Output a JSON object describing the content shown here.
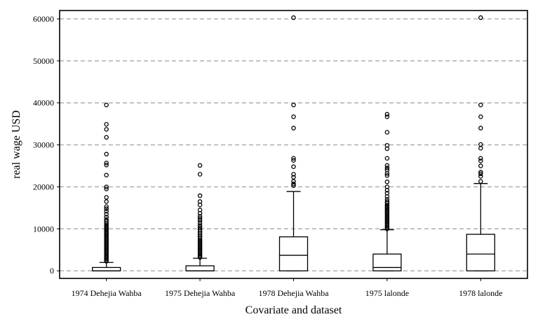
{
  "chart_data": {
    "type": "box",
    "title": "",
    "xlabel": "Covariate and dataset",
    "ylabel": "real wage USD",
    "ylim": [
      -1800,
      62000
    ],
    "yticks": [
      0,
      10000,
      20000,
      30000,
      40000,
      50000,
      60000
    ],
    "grid": "horizontal dashed",
    "categories": [
      "1974 Dehejia Wahba",
      "1975 Dehejia Wahba",
      "1978 Dehejia Wahba",
      "1975 lalonde",
      "1978 lalonde"
    ],
    "boxes": [
      {
        "category": "1974 Dehejia Wahba",
        "whisker_low": 0,
        "q1": 0,
        "median": 0,
        "q3": 800,
        "whisker_high": 2000,
        "outliers": [
          2300,
          2600,
          2900,
          3200,
          3500,
          3800,
          4100,
          4400,
          4700,
          5000,
          5300,
          5600,
          5900,
          6200,
          6500,
          6800,
          7100,
          7400,
          7700,
          8000,
          8300,
          8600,
          8900,
          9200,
          9500,
          9800,
          10100,
          10400,
          10700,
          11000,
          11400,
          11800,
          12200,
          12800,
          13500,
          14200,
          14800,
          15300,
          16500,
          17500,
          19500,
          20000,
          22800,
          25200,
          25700,
          27800,
          31800,
          33700,
          34900,
          39500
        ]
      },
      {
        "category": "1975 Dehejia Wahba",
        "whisker_low": 0,
        "q1": 0,
        "median": 0,
        "q3": 1200,
        "whisker_high": 3000,
        "outliers": [
          3200,
          3500,
          3800,
          4100,
          4400,
          4700,
          5000,
          5300,
          5600,
          5900,
          6200,
          6500,
          6800,
          7100,
          7400,
          7800,
          8200,
          8600,
          9000,
          9400,
          9800,
          10300,
          10800,
          11400,
          12000,
          12500,
          13000,
          13700,
          14500,
          15700,
          16500,
          17900,
          23000,
          25100
        ]
      },
      {
        "category": "1978 Dehejia Wahba",
        "whisker_low": 0,
        "q1": 0,
        "median": 3700,
        "q3": 8100,
        "whisker_high": 18900,
        "outliers": [
          20300,
          20700,
          21300,
          22300,
          23000,
          24800,
          26300,
          26800,
          34000,
          36700,
          39500,
          60300
        ]
      },
      {
        "category": "1975 lalonde",
        "whisker_low": 0,
        "q1": 0,
        "median": 800,
        "q3": 4000,
        "whisker_high": 9800,
        "outliers": [
          10000,
          10300,
          10600,
          10900,
          11200,
          11500,
          11800,
          12100,
          12400,
          12700,
          13000,
          13300,
          13600,
          13900,
          14200,
          14500,
          14800,
          15100,
          15400,
          15700,
          16100,
          16500,
          17000,
          17700,
          18500,
          19200,
          20000,
          21200,
          22700,
          23200,
          24000,
          24500,
          25100,
          26800,
          29100,
          29900,
          33000,
          36700,
          37300
        ]
      },
      {
        "category": "1978 lalonde",
        "whisker_low": 0,
        "q1": 0,
        "median": 4000,
        "q3": 8700,
        "whisker_high": 20800,
        "outliers": [
          21300,
          22500,
          23100,
          23500,
          25000,
          26200,
          26800,
          29200,
          30100,
          34000,
          36700,
          39500,
          60300
        ]
      }
    ]
  }
}
